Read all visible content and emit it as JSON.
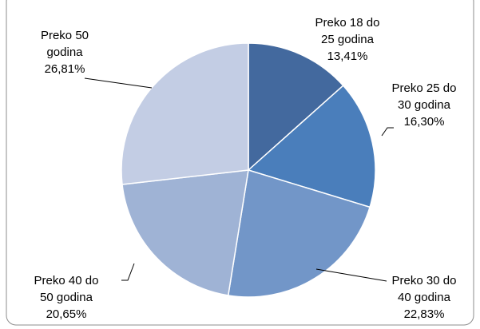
{
  "chart_data": {
    "type": "pie",
    "categories": [
      "Preko 18 do 25 godina",
      "Preko 25 do 30 godina",
      "Preko 30 do 40 godina",
      "Preko 40 do 50 godina",
      "Preko 50 godina"
    ],
    "values": [
      13.41,
      16.3,
      22.83,
      20.65,
      26.81
    ],
    "value_labels": [
      "13,41%",
      "16,30%",
      "22,83%",
      "20,65%",
      "26,81%"
    ],
    "colors": [
      "#43699e",
      "#4a7ebb",
      "#7296c8",
      "#9fb3d5",
      "#c3cde4"
    ]
  }
}
